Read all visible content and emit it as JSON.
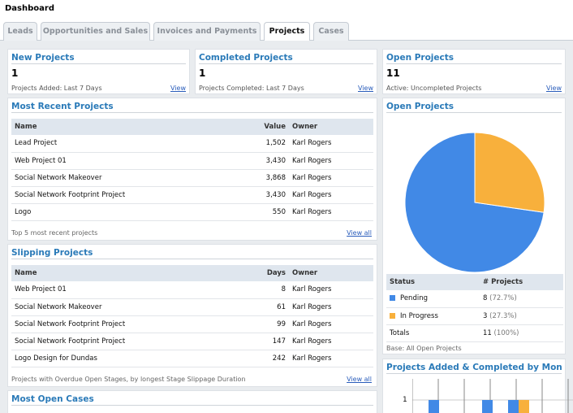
{
  "app": {
    "title": "Dashboard"
  },
  "tabs": [
    {
      "label": "Leads",
      "active": false
    },
    {
      "label": "Opportunities and Sales",
      "active": false
    },
    {
      "label": "Invoices and Payments",
      "active": false
    },
    {
      "label": "Projects",
      "active": true
    },
    {
      "label": "Cases",
      "active": false
    }
  ],
  "kpis": {
    "new_projects": {
      "title": "New Projects",
      "value": "1",
      "sub": "Projects Added: Last 7 Days",
      "link": "View"
    },
    "completed_projects": {
      "title": "Completed Projects",
      "value": "1",
      "sub": "Projects Completed: Last 7 Days",
      "link": "View"
    },
    "open_projects": {
      "title": "Open Projects",
      "value": "11",
      "sub": "Active: Uncompleted Projects",
      "link": "View"
    }
  },
  "recent_projects": {
    "title": "Most Recent Projects",
    "columns": {
      "name": "Name",
      "value": "Value",
      "owner": "Owner"
    },
    "rows": [
      {
        "name": "Lead Project",
        "value": "1,502",
        "owner": "Karl Rogers"
      },
      {
        "name": "Web Project 01",
        "value": "3,430",
        "owner": "Karl Rogers"
      },
      {
        "name": "Social Network Makeover",
        "value": "3,868",
        "owner": "Karl Rogers"
      },
      {
        "name": "Social Network Footprint Project",
        "value": "3,430",
        "owner": "Karl Rogers"
      },
      {
        "name": "Logo",
        "value": "550",
        "owner": "Karl Rogers"
      }
    ],
    "footer": "Top 5 most recent projects",
    "link": "View all"
  },
  "slipping_projects": {
    "title": "Slipping Projects",
    "columns": {
      "name": "Name",
      "days": "Days",
      "owner": "Owner"
    },
    "rows": [
      {
        "name": "Web Project 01",
        "days": "8",
        "owner": "Karl Rogers"
      },
      {
        "name": "Social Network Makeover",
        "days": "61",
        "owner": "Karl Rogers"
      },
      {
        "name": "Social Network Footprint Project",
        "days": "99",
        "owner": "Karl Rogers"
      },
      {
        "name": "Social Network Footprint Project",
        "days": "147",
        "owner": "Karl Rogers"
      },
      {
        "name": "Logo Design for Dundas",
        "days": "242",
        "owner": "Karl Rogers"
      }
    ],
    "footer": "Projects with Overdue Open Stages, by longest Stage Slippage Duration",
    "link": "View all"
  },
  "open_cases": {
    "title": "Most Open Cases"
  },
  "open_projects_chart": {
    "title": "Open Projects",
    "columns": {
      "status": "Status",
      "projects": "# Projects"
    },
    "rows": [
      {
        "status": "Pending",
        "count": "8",
        "pct": "(72.7%)",
        "color": "#4189e6"
      },
      {
        "status": "In Progress",
        "count": "3",
        "pct": "(27.3%)",
        "color": "#f8b03c"
      }
    ],
    "total": {
      "label": "Totals",
      "count": "11",
      "pct": "(100%)"
    },
    "base": "Base: All Open Projects"
  },
  "monthly_chart": {
    "title": "Projects Added & Completed by Month",
    "ytick": "1"
  },
  "chart_data": [
    {
      "type": "pie",
      "labels": [
        "Pending",
        "In Progress"
      ],
      "values": [
        8,
        3
      ],
      "colors": [
        "#4189e6",
        "#f8b03c"
      ]
    }
  ]
}
